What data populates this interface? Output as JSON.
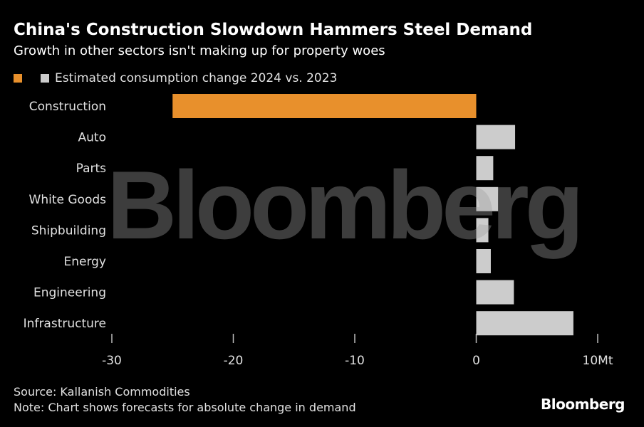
{
  "header": {
    "title": "China's Construction Slowdown Hammers Steel Demand",
    "subtitle": "Growth in other sectors isn't making up for property woes"
  },
  "legend": {
    "label": "Estimated consumption change 2024 vs. 2023",
    "colors": [
      "#e8902c",
      "#cccccc"
    ]
  },
  "chart_data": {
    "type": "bar",
    "orientation": "horizontal",
    "categories": [
      "Construction",
      "Auto",
      "Parts",
      "White Goods",
      "Shipbuilding",
      "Energy",
      "Engineering",
      "Infrastructure"
    ],
    "series": [
      {
        "values": [
          -25,
          3.2,
          1.4,
          1.8,
          1.0,
          1.2,
          3.1,
          8.0
        ]
      }
    ],
    "bar_colors": [
      "#e8902c",
      "#cccccc",
      "#cccccc",
      "#cccccc",
      "#cccccc",
      "#cccccc",
      "#cccccc",
      "#cccccc"
    ],
    "xlim": [
      -30,
      10
    ],
    "xticks": [
      -30,
      -20,
      -10,
      0,
      10
    ],
    "xtick_labels": [
      "-30",
      "-20",
      "-10",
      "0",
      "10Mt"
    ],
    "grid": false,
    "legend_position": "top-left"
  },
  "footer": {
    "source": "Source: Kallanish Commodities",
    "note": "Note: Chart shows forecasts for absolute change in demand"
  },
  "brand": "Bloomberg",
  "watermark": "Bloomberg"
}
